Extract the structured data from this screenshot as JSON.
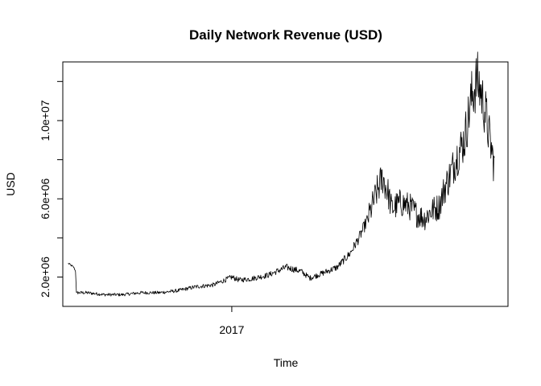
{
  "chart_data": {
    "type": "line",
    "title": "Daily Network Revenue (USD)",
    "xlabel": "Time",
    "ylabel": "USD",
    "x_range": [
      2016.07,
      2018.52
    ],
    "ylim": [
      500000,
      13000000
    ],
    "x_ticks": [
      {
        "value": 2017,
        "label": "2017"
      }
    ],
    "y_ticks": [
      {
        "value": 2000000,
        "label": "2.0e+06"
      },
      {
        "value": 4000000,
        "label": ""
      },
      {
        "value": 6000000,
        "label": "6.0e+06"
      },
      {
        "value": 8000000,
        "label": ""
      },
      {
        "value": 10000000,
        "label": "1.0e+07"
      },
      {
        "value": 12000000,
        "label": ""
      }
    ],
    "grid": false,
    "legend": "none",
    "series": [
      {
        "color": "#000000",
        "anchors": [
          [
            2016.1,
            2700000
          ],
          [
            2016.13,
            2500000
          ],
          [
            2016.14,
            2300000
          ],
          [
            2016.145,
            1200000
          ],
          [
            2016.2,
            1200000
          ],
          [
            2016.3,
            1100000
          ],
          [
            2016.4,
            1100000
          ],
          [
            2016.5,
            1200000
          ],
          [
            2016.6,
            1200000
          ],
          [
            2016.7,
            1300000
          ],
          [
            2016.8,
            1500000
          ],
          [
            2016.9,
            1600000
          ],
          [
            2017.0,
            2000000
          ],
          [
            2017.04,
            1850000
          ],
          [
            2017.1,
            1900000
          ],
          [
            2017.2,
            2100000
          ],
          [
            2017.3,
            2500000
          ],
          [
            2017.38,
            2300000
          ],
          [
            2017.43,
            1950000
          ],
          [
            2017.5,
            2200000
          ],
          [
            2017.58,
            2500000
          ],
          [
            2017.65,
            3200000
          ],
          [
            2017.7,
            4000000
          ],
          [
            2017.75,
            5000000
          ],
          [
            2017.8,
            6400000
          ],
          [
            2017.83,
            7100000
          ],
          [
            2017.86,
            6300000
          ],
          [
            2017.88,
            5500000
          ],
          [
            2017.93,
            5800000
          ],
          [
            2017.98,
            5600000
          ],
          [
            2018.02,
            5200000
          ],
          [
            2018.06,
            5000000
          ],
          [
            2018.1,
            5400000
          ],
          [
            2018.14,
            5600000
          ],
          [
            2018.17,
            6500000
          ],
          [
            2018.2,
            7200000
          ],
          [
            2018.24,
            8200000
          ],
          [
            2018.28,
            9000000
          ],
          [
            2018.32,
            11200000
          ],
          [
            2018.35,
            12100000
          ],
          [
            2018.37,
            11500000
          ],
          [
            2018.4,
            10200000
          ],
          [
            2018.42,
            9000000
          ],
          [
            2018.44,
            7900000
          ],
          [
            2018.445,
            8100000
          ]
        ]
      }
    ]
  }
}
